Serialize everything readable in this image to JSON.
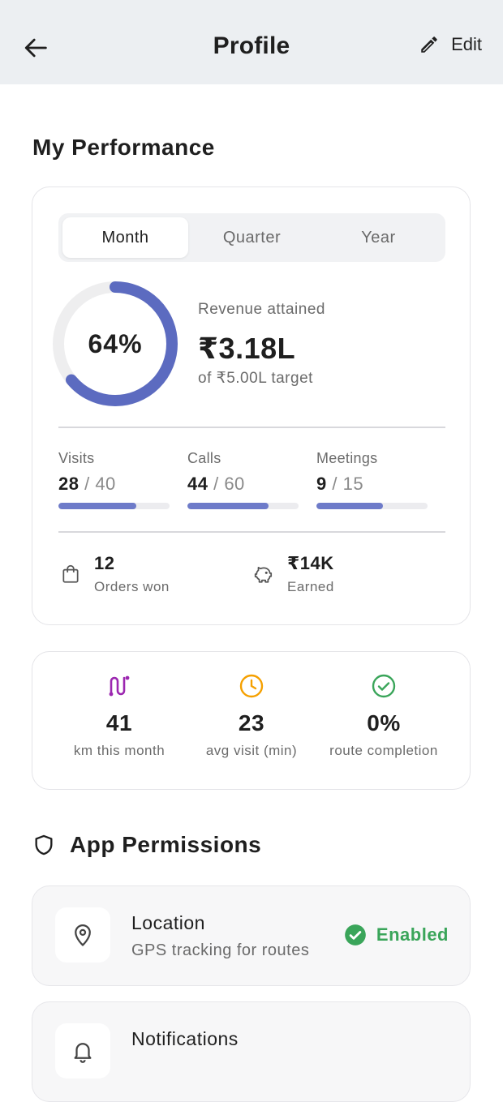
{
  "header": {
    "title": "Profile",
    "edit_label": "Edit"
  },
  "performance": {
    "section_title": "My Performance",
    "tabs": [
      "Month",
      "Quarter",
      "Year"
    ],
    "active_tab": "Month",
    "progress_percent_label": "64%",
    "progress_fraction": 0.64,
    "revenue_caption": "Revenue attained",
    "revenue_amount": "₹3.18L",
    "revenue_target": "of ₹5.00L target",
    "metrics": [
      {
        "label": "Visits",
        "done": "28",
        "total": " / 40",
        "fraction": 0.7
      },
      {
        "label": "Calls",
        "done": "44",
        "total": " / 60",
        "fraction": 0.733
      },
      {
        "label": "Meetings",
        "done": "9",
        "total": " / 15",
        "fraction": 0.6
      }
    ],
    "stats": [
      {
        "value": "12",
        "label": "Orders won",
        "icon": "shopping-bag-icon"
      },
      {
        "value": "₹14K",
        "label": "Earned",
        "icon": "piggy-bank-icon"
      }
    ]
  },
  "summary": [
    {
      "value": "41",
      "label": "km this month",
      "icon": "route-icon",
      "color": "#9c27b0"
    },
    {
      "value": "23",
      "label": "avg visit (min)",
      "icon": "clock-icon",
      "color": "#f5a000"
    },
    {
      "value": "0%",
      "label": "route completion",
      "icon": "check-circle-icon",
      "color": "#3aa55a"
    }
  ],
  "permissions": {
    "section_title": "App Permissions",
    "items": [
      {
        "name": "Location",
        "description": "GPS tracking for routes",
        "status": "Enabled",
        "icon": "location-pin-icon"
      },
      {
        "name": "Notifications",
        "icon": "bell-icon"
      }
    ]
  },
  "colors": {
    "accent": "#5c6bc0",
    "bar": "#6e7bc9",
    "enabled": "#3aa55a",
    "topbar": "#eceff2"
  }
}
